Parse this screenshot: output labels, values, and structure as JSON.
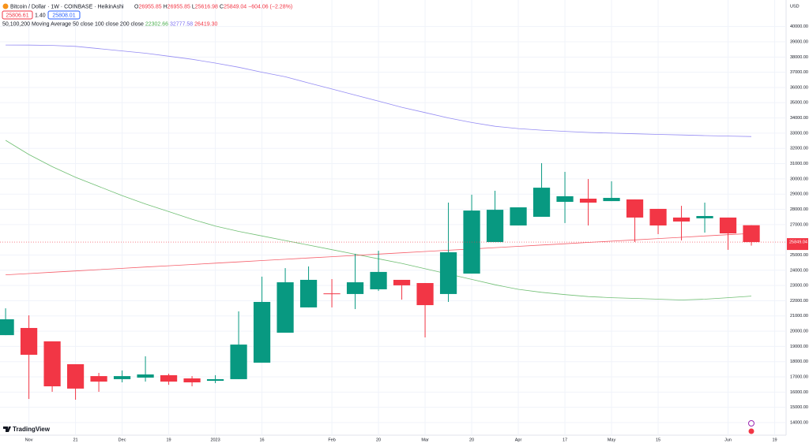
{
  "header": {
    "symbol": "Bitcoin / Dollar · 1W · COINBASE · HeikinAshi",
    "o": "O",
    "h": "H",
    "l": "L",
    "c": "C",
    "change": "−604.06 (−2.28%)",
    "bid": "25806.61",
    "spread": "1.40",
    "ask": "25808.01",
    "ma_title": "50,100,200 Moving Average 50 close 100 close 200 close",
    "currency": "USD",
    "brand": "TradingView"
  },
  "chart_data": {
    "type": "candlestick",
    "up_color": "#089981",
    "down_color": "#f23645",
    "open": [
      19740,
      20210,
      19330,
      17830,
      17050,
      16850,
      16950,
      17110,
      16900,
      16740,
      16850,
      17930,
      19900,
      21560,
      22480,
      22440,
      22750,
      23370,
      23160,
      22440,
      23780,
      25850,
      26940,
      27510,
      28490,
      28700,
      28540,
      28650,
      28030,
      27460,
      27410,
      27460,
      26955.85
    ],
    "high": [
      21500,
      21040,
      19330,
      17830,
      17260,
      17420,
      18350,
      17210,
      17050,
      17110,
      21300,
      23580,
      24140,
      24250,
      23420,
      25080,
      25280,
      23370,
      23160,
      28440,
      28960,
      29220,
      28130,
      31030,
      30460,
      29990,
      29840,
      28650,
      28030,
      28230,
      28440,
      27460,
      26955.85
    ],
    "low": [
      19740,
      15550,
      16020,
      15500,
      16020,
      16640,
      16690,
      16480,
      16380,
      16590,
      16850,
      17930,
      19900,
      21560,
      21560,
      21450,
      22640,
      22070,
      19590,
      21920,
      23780,
      25850,
      26940,
      27510,
      27100,
      26940,
      28540,
      25850,
      26370,
      25960,
      26470,
      25340,
      25616.98
    ],
    "close": [
      20780,
      18450,
      16380,
      16230,
      16690,
      17050,
      17160,
      16690,
      16640,
      16850,
      19120,
      21920,
      23210,
      23370,
      22430,
      23210,
      23890,
      23010,
      21710,
      25180,
      27920,
      27970,
      28130,
      29420,
      28860,
      28440,
      28750,
      27460,
      26940,
      27200,
      27560,
      26420,
      25849.04
    ],
    "series": [
      {
        "name": "50 close",
        "color": "#4caf50",
        "value_label": "22302.66",
        "values": [
          32530,
          31600,
          30800,
          30100,
          29500,
          28900,
          28350,
          27850,
          27350,
          26900,
          26550,
          26250,
          25950,
          25650,
          25350,
          25050,
          24750,
          24450,
          24100,
          23750,
          23400,
          23050,
          22750,
          22550,
          22400,
          22270,
          22200,
          22150,
          22100,
          22050,
          22100,
          22200,
          22302.66
        ]
      },
      {
        "name": "100 close",
        "color": "#7b6ff0",
        "value_label": "32777.58",
        "values": [
          38790,
          38780,
          38760,
          38700,
          38550,
          38400,
          38250,
          38050,
          37850,
          37600,
          37330,
          37000,
          36700,
          36300,
          35900,
          35500,
          35100,
          34700,
          34350,
          34000,
          33700,
          33450,
          33300,
          33200,
          33120,
          33050,
          33000,
          32960,
          32920,
          32880,
          32840,
          32810,
          32777.58
        ]
      },
      {
        "name": "200 close",
        "color": "#f23645",
        "value_label": "26419.30",
        "values": [
          23700,
          23785,
          23870,
          23955,
          24040,
          24125,
          24210,
          24295,
          24380,
          24465,
          24550,
          24635,
          24720,
          24805,
          24890,
          24975,
          25060,
          25145,
          25230,
          25315,
          25400,
          25485,
          25570,
          25655,
          25740,
          25825,
          25910,
          25995,
          26080,
          26165,
          26250,
          26335,
          26419.3
        ]
      }
    ],
    "xlim": [
      -0.24,
      33.49
    ],
    "xticks": [
      {
        "value": 1,
        "label": "Nov"
      },
      {
        "value": 3,
        "label": "21"
      },
      {
        "value": 5,
        "label": "Dec"
      },
      {
        "value": 7,
        "label": "19"
      },
      {
        "value": 9,
        "label": "2023"
      },
      {
        "value": 11,
        "label": "16"
      },
      {
        "value": 14,
        "label": "Feb"
      },
      {
        "value": 16,
        "label": "20"
      },
      {
        "value": 18,
        "label": "Mar"
      },
      {
        "value": 20,
        "label": "20"
      },
      {
        "value": 22,
        "label": "Apr"
      },
      {
        "value": 24,
        "label": "17"
      },
      {
        "value": 26,
        "label": "May"
      },
      {
        "value": 28,
        "label": "15"
      },
      {
        "value": 31,
        "label": "Jun"
      },
      {
        "value": 33,
        "label": "19"
      }
    ],
    "ylim": [
      13172,
      41743
    ],
    "yticks": [
      {
        "value": 14000,
        "label": "14000.00"
      },
      {
        "value": 15000,
        "label": "15000.00"
      },
      {
        "value": 16000,
        "label": "16000.00"
      },
      {
        "value": 17000,
        "label": "17000.00"
      },
      {
        "value": 18000,
        "label": "18000.00"
      },
      {
        "value": 19000,
        "label": "19000.00"
      },
      {
        "value": 20000,
        "label": "20000.00"
      },
      {
        "value": 21000,
        "label": "21000.00"
      },
      {
        "value": 22000,
        "label": "22000.00"
      },
      {
        "value": 23000,
        "label": "23000.00"
      },
      {
        "value": 24000,
        "label": "24000.00"
      },
      {
        "value": 25000,
        "label": "25000.00"
      },
      {
        "value": 27000,
        "label": "27000.00"
      },
      {
        "value": 28000,
        "label": "28000.00"
      },
      {
        "value": 29000,
        "label": "29000.00"
      },
      {
        "value": 30000,
        "label": "30000.00"
      },
      {
        "value": 31000,
        "label": "31000.00"
      },
      {
        "value": 32000,
        "label": "32000.00"
      },
      {
        "value": 33000,
        "label": "33000.00"
      },
      {
        "value": 34000,
        "label": "34000.00"
      },
      {
        "value": 35000,
        "label": "35000.00"
      },
      {
        "value": 36000,
        "label": "36000.00"
      },
      {
        "value": 37000,
        "label": "37000.00"
      },
      {
        "value": 38000,
        "label": "38000.00"
      },
      {
        "value": 39000,
        "label": "39000.00"
      },
      {
        "value": 40000,
        "label": "40000.00"
      }
    ]
  }
}
